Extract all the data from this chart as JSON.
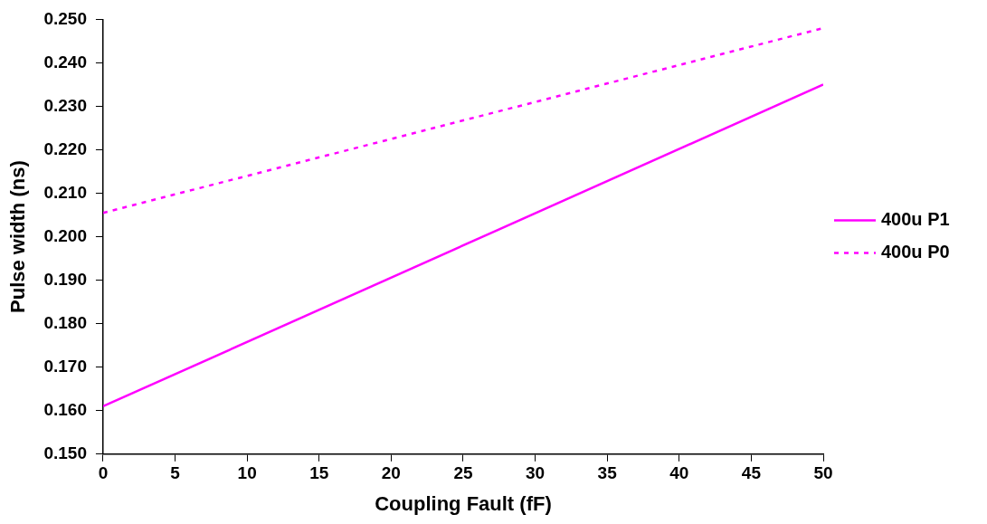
{
  "chart_data": {
    "type": "line",
    "xlabel": "Coupling Fault (fF)",
    "ylabel": "Pulse width (ns)",
    "x": [
      0,
      50
    ],
    "series": [
      {
        "name": "400u P1",
        "color": "#ff00ff",
        "values": [
          0.161,
          0.235
        ],
        "line_style": "solid"
      },
      {
        "name": "400u P0",
        "color": "#ff00ff",
        "values": [
          0.2055,
          0.248
        ],
        "line_style": "dotted"
      }
    ],
    "xlim": [
      0,
      50
    ],
    "xticks": [
      0,
      5,
      10,
      15,
      20,
      25,
      30,
      35,
      40,
      45,
      50
    ],
    "ylim": [
      0.15,
      0.25
    ],
    "yticks": [
      {
        "value": 0.15,
        "label": "0.150"
      },
      {
        "value": 0.16,
        "label": "0.160"
      },
      {
        "value": 0.17,
        "label": "0.170"
      },
      {
        "value": 0.18,
        "label": "0.180"
      },
      {
        "value": 0.19,
        "label": "0.190"
      },
      {
        "value": 0.2,
        "label": "0.200"
      },
      {
        "value": 0.21,
        "label": "0.210"
      },
      {
        "value": 0.22,
        "label": "0.220"
      },
      {
        "value": 0.23,
        "label": "0.230"
      },
      {
        "value": 0.24,
        "label": "0.240"
      },
      {
        "value": 0.25,
        "label": "0.250"
      }
    ],
    "grid": false,
    "legend": "right",
    "marker": "none"
  }
}
